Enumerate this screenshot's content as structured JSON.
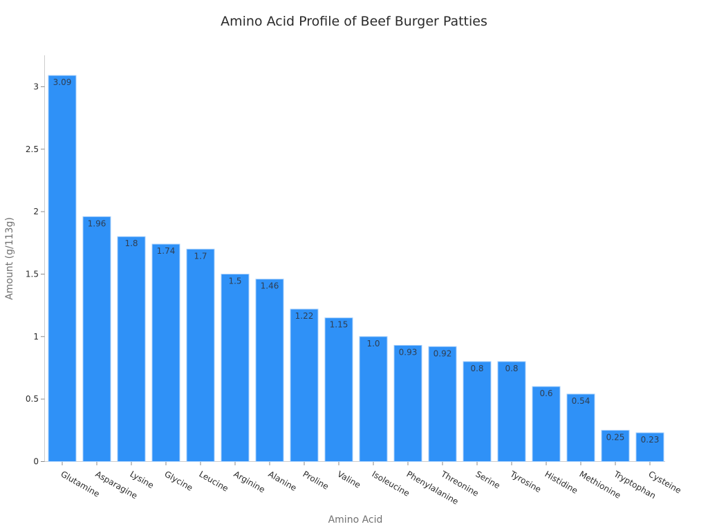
{
  "chart_data": {
    "type": "bar",
    "title": "Amino Acid Profile of Beef Burger Patties",
    "xlabel": "Amino Acid",
    "ylabel": "Amount (g/113g)",
    "ylim": [
      0,
      3.25
    ],
    "yticks": [
      0,
      0.5,
      1,
      1.5,
      2,
      2.5,
      3
    ],
    "ytick_labels": [
      "0",
      "0.5",
      "1",
      "1.5",
      "2",
      "2.5",
      "3"
    ],
    "grid": false,
    "legend": null,
    "bar_color": "#2f91f7",
    "bar_edge_color": "#a8d0fb",
    "categories": [
      "Glutamine",
      "Asparagine",
      "Lysine",
      "Glycine",
      "Leucine",
      "Arginine",
      "Alanine",
      "Proline",
      "Valine",
      "Isoleucine",
      "Phenylalanine",
      "Threonine",
      "Serine",
      "Tyrosine",
      "Histidine",
      "Methionine",
      "Tryptophan",
      "Cysteine"
    ],
    "values": [
      3.09,
      1.96,
      1.8,
      1.74,
      1.7,
      1.5,
      1.46,
      1.22,
      1.15,
      1.0,
      0.93,
      0.92,
      0.8,
      0.8,
      0.6,
      0.54,
      0.25,
      0.23
    ],
    "value_labels": [
      "3.09",
      "1.96",
      "1.8",
      "1.74",
      "1.7",
      "1.5",
      "1.46",
      "1.22",
      "1.15",
      "1.0",
      "0.93",
      "0.92",
      "0.8",
      "0.8",
      "0.6",
      "0.54",
      "0.25",
      "0.23"
    ]
  }
}
